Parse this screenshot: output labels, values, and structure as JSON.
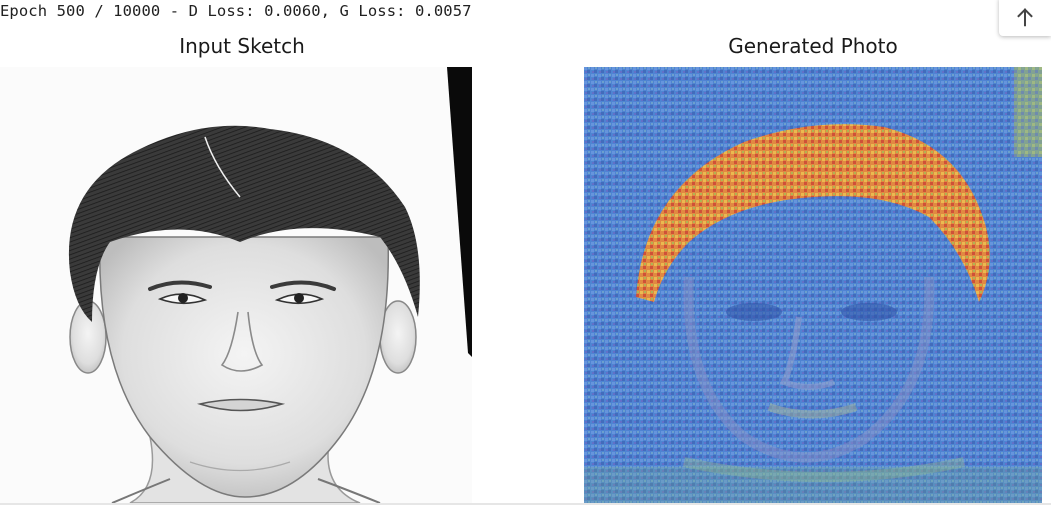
{
  "output": {
    "log_line": "Epoch 500 / 10000 - D Loss: 0.0060, G Loss: 0.0057"
  },
  "figure": {
    "left_title": "Input Sketch",
    "right_title": "Generated Photo"
  },
  "controls": {
    "scroll_top_icon": "arrow-up-icon"
  }
}
